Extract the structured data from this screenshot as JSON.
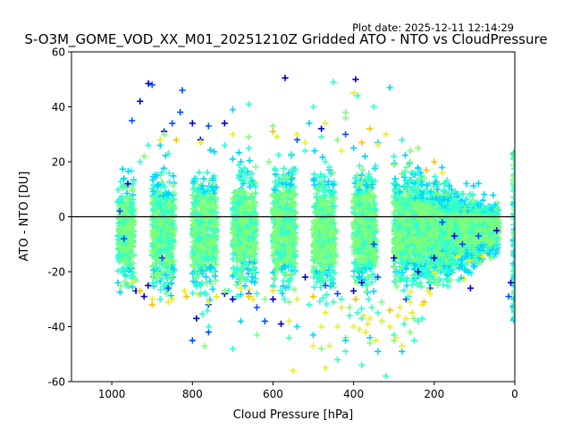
{
  "plot_date": "Plot date: 2025-12-11 12:14:29",
  "chart_data": {
    "type": "scatter",
    "title": "S-O3M_GOME_VOD_XX_M01_20251210Z Gridded ATO - NTO vs CloudPressure",
    "xlabel": "Cloud Pressure [hPa]",
    "ylabel": "ATO - NTO [DU]",
    "xlim": [
      1100,
      0
    ],
    "ylim": [
      -60,
      60
    ],
    "x_inverted": true,
    "xticks": [
      1000,
      800,
      600,
      400,
      200,
      0
    ],
    "yticks": [
      -60,
      -40,
      -20,
      0,
      20,
      40,
      60
    ],
    "marker": "+",
    "colormap": "jet",
    "reference_line": {
      "y": 0,
      "color": "#000000"
    },
    "colors": {
      "dark_blue": "#0000c8",
      "blue": "#0050ff",
      "cyan": "#00d4ff",
      "aqua": "#30ffd0",
      "green": "#7dff7a",
      "yellow": "#e8f020",
      "orange": "#ffc000"
    },
    "series": [
      {
        "values": [
          [
            909,
            48.5
          ],
          [
            825,
            46
          ],
          [
            570,
            50.5
          ],
          [
            830,
            38
          ],
          [
            930,
            42
          ],
          [
            850,
            34
          ],
          [
            800,
            34
          ],
          [
            760,
            33
          ],
          [
            720,
            34
          ],
          [
            950,
            35
          ],
          [
            870,
            31
          ],
          [
            900,
            48
          ],
          [
            780,
            28
          ],
          [
            540,
            28
          ],
          [
            480,
            32
          ],
          [
            420,
            30
          ],
          [
            395,
            50
          ],
          [
            180,
            -2
          ],
          [
            150,
            -7
          ],
          [
            130,
            -10
          ],
          [
            110,
            -26
          ],
          [
            90,
            -7
          ],
          [
            45,
            -5
          ],
          [
            15,
            -29
          ],
          [
            10,
            -24
          ],
          [
            760,
            -32
          ],
          [
            700,
            -30
          ],
          [
            640,
            -33
          ],
          [
            580,
            -39
          ],
          [
            800,
            -45
          ],
          [
            790,
            -37
          ],
          [
            620,
            -38
          ],
          [
            910,
            -25
          ],
          [
            875,
            -15
          ],
          [
            940,
            -27
          ],
          [
            760,
            -42
          ],
          [
            520,
            -22
          ],
          [
            470,
            -25
          ],
          [
            380,
            -24
          ],
          [
            350,
            -10
          ],
          [
            300,
            -15
          ],
          [
            270,
            -30
          ],
          [
            240,
            -20
          ],
          [
            210,
            -26
          ],
          [
            200,
            -15
          ],
          [
            970,
            -8
          ],
          [
            960,
            12
          ],
          [
            980,
            2
          ],
          [
            720,
            -28
          ],
          [
            660,
            -28
          ],
          [
            600,
            -30
          ],
          [
            440,
            -28
          ],
          [
            400,
            -27
          ],
          [
            340,
            -22
          ],
          [
            920,
            -29
          ],
          [
            860,
            -26
          ]
        ]
      },
      {
        "values": [
          [
            760,
            -40
          ],
          [
            540,
            -40
          ],
          [
            420,
            -44
          ],
          [
            380,
            -54
          ],
          [
            340,
            -49
          ],
          [
            300,
            -45
          ],
          [
            250,
            -45
          ],
          [
            360,
            -44
          ],
          [
            770,
            -47
          ],
          [
            450,
            49
          ],
          [
            310,
            47
          ],
          [
            420,
            36
          ],
          [
            390,
            44
          ],
          [
            510,
            34
          ],
          [
            600,
            33
          ],
          [
            660,
            41
          ],
          [
            700,
            39
          ],
          [
            940,
            -23
          ],
          [
            460,
            18
          ],
          [
            340,
            27
          ],
          [
            260,
            24
          ],
          [
            230,
            -37
          ],
          [
            175,
            -18
          ],
          [
            120,
            -5
          ],
          [
            80,
            -3
          ],
          [
            55,
            -12
          ],
          [
            160,
            -23
          ],
          [
            140,
            -23
          ],
          [
            100,
            -18
          ],
          [
            60,
            -15
          ],
          [
            700,
            -48
          ],
          [
            680,
            -38
          ],
          [
            640,
            -43
          ],
          [
            560,
            -44
          ],
          [
            500,
            -43
          ],
          [
            480,
            -48
          ],
          [
            440,
            -52
          ],
          [
            420,
            -45
          ],
          [
            360,
            -46
          ],
          [
            330,
            -38
          ],
          [
            280,
            -49
          ],
          [
            260,
            -42
          ],
          [
            240,
            -38
          ],
          [
            880,
            26
          ],
          [
            920,
            22
          ],
          [
            860,
            23
          ],
          [
            700,
            21
          ],
          [
            610,
            20
          ],
          [
            520,
            24
          ],
          [
            400,
            25
          ],
          [
            300,
            19
          ],
          [
            250,
            16
          ],
          [
            200,
            12
          ],
          [
            170,
            8
          ],
          [
            150,
            5
          ]
        ]
      },
      {
        "values": [
          [
            550,
            -56
          ],
          [
            470,
            -55
          ],
          [
            420,
            -49
          ],
          [
            440,
            -40
          ],
          [
            400,
            -40
          ],
          [
            380,
            -37
          ],
          [
            360,
            -37
          ],
          [
            330,
            -38
          ],
          [
            320,
            -58
          ],
          [
            280,
            -47
          ],
          [
            270,
            -37
          ],
          [
            450,
            -31
          ],
          [
            500,
            -47
          ],
          [
            560,
            -38
          ],
          [
            710,
            -27
          ],
          [
            650,
            -30
          ],
          [
            400,
            45
          ],
          [
            350,
            40
          ],
          [
            230,
            -32
          ],
          [
            215,
            -27
          ],
          [
            880,
            -30
          ],
          [
            820,
            -27
          ],
          [
            430,
            -33
          ],
          [
            390,
            -35
          ],
          [
            370,
            -42
          ],
          [
            345,
            -45
          ],
          [
            300,
            -43
          ],
          [
            290,
            -36
          ],
          [
            260,
            -31
          ],
          [
            510,
            -32
          ],
          [
            480,
            -40
          ],
          [
            460,
            -47
          ],
          [
            410,
            -36
          ],
          [
            385,
            -41
          ],
          [
            365,
            -39
          ],
          [
            340,
            -35
          ],
          [
            310,
            -40
          ],
          [
            295,
            -44
          ],
          [
            275,
            -39
          ],
          [
            255,
            -35
          ],
          [
            540,
            -30
          ],
          [
            600,
            -25
          ],
          [
            680,
            -26
          ],
          [
            740,
            -29
          ],
          [
            780,
            -25
          ],
          [
            860,
            -31
          ],
          [
            900,
            -30
          ],
          [
            930,
            20
          ],
          [
            880,
            28
          ],
          [
            700,
            30
          ],
          [
            660,
            25
          ],
          [
            590,
            29
          ],
          [
            520,
            27
          ],
          [
            470,
            20
          ],
          [
            430,
            24
          ]
        ]
      },
      {
        "values": [
          [
            900,
            -32
          ],
          [
            850,
            -30
          ],
          [
            780,
            -28
          ],
          [
            720,
            -27
          ],
          [
            660,
            -29
          ],
          [
            600,
            -27
          ],
          [
            640,
            -28
          ],
          [
            560,
            -31
          ],
          [
            500,
            -29
          ],
          [
            470,
            -35
          ],
          [
            430,
            -30
          ],
          [
            410,
            -33
          ],
          [
            395,
            -30
          ],
          [
            375,
            -36
          ],
          [
            355,
            -33
          ],
          [
            330,
            -31
          ],
          [
            310,
            -34
          ],
          [
            285,
            -33
          ],
          [
            265,
            -29
          ],
          [
            250,
            -37
          ],
          [
            225,
            -31
          ],
          [
            210,
            -28
          ],
          [
            205,
            -22
          ],
          [
            865,
            -28
          ],
          [
            815,
            -29
          ],
          [
            760,
            -31
          ],
          [
            690,
            -29
          ],
          [
            620,
            -30
          ],
          [
            930,
            -27
          ],
          [
            950,
            -24
          ],
          [
            910,
            26
          ],
          [
            870,
            30
          ],
          [
            840,
            28
          ],
          [
            780,
            27
          ],
          [
            720,
            26
          ],
          [
            660,
            29
          ],
          [
            600,
            31
          ],
          [
            540,
            30
          ],
          [
            480,
            29
          ],
          [
            440,
            28
          ],
          [
            380,
            27
          ],
          [
            340,
            26
          ],
          [
            300,
            22
          ],
          [
            260,
            20
          ],
          [
            220,
            17
          ],
          [
            470,
            34
          ],
          [
            500,
            40
          ],
          [
            420,
            38
          ],
          [
            360,
            32
          ],
          [
            320,
            30
          ],
          [
            280,
            28
          ],
          [
            240,
            25
          ],
          [
            200,
            20
          ],
          [
            180,
            16
          ]
        ]
      }
    ],
    "band": {
      "x_segments": [
        [
          985,
          40
        ],
        [
          900,
          55
        ],
        [
          800,
          60
        ],
        [
          700,
          58
        ],
        [
          600,
          56
        ],
        [
          500,
          55
        ],
        [
          400,
          55
        ],
        [
          300,
          70
        ],
        [
          250,
          95
        ],
        [
          210,
          125
        ],
        [
          180,
          140
        ]
      ],
      "y_min": [
        -30,
        -32,
        -32,
        -30,
        -32,
        -34,
        -33,
        -30,
        -28,
        -22,
        -15
      ],
      "y_max": [
        24,
        25,
        26,
        27,
        28,
        27,
        28,
        26,
        22,
        15,
        10
      ]
    }
  }
}
